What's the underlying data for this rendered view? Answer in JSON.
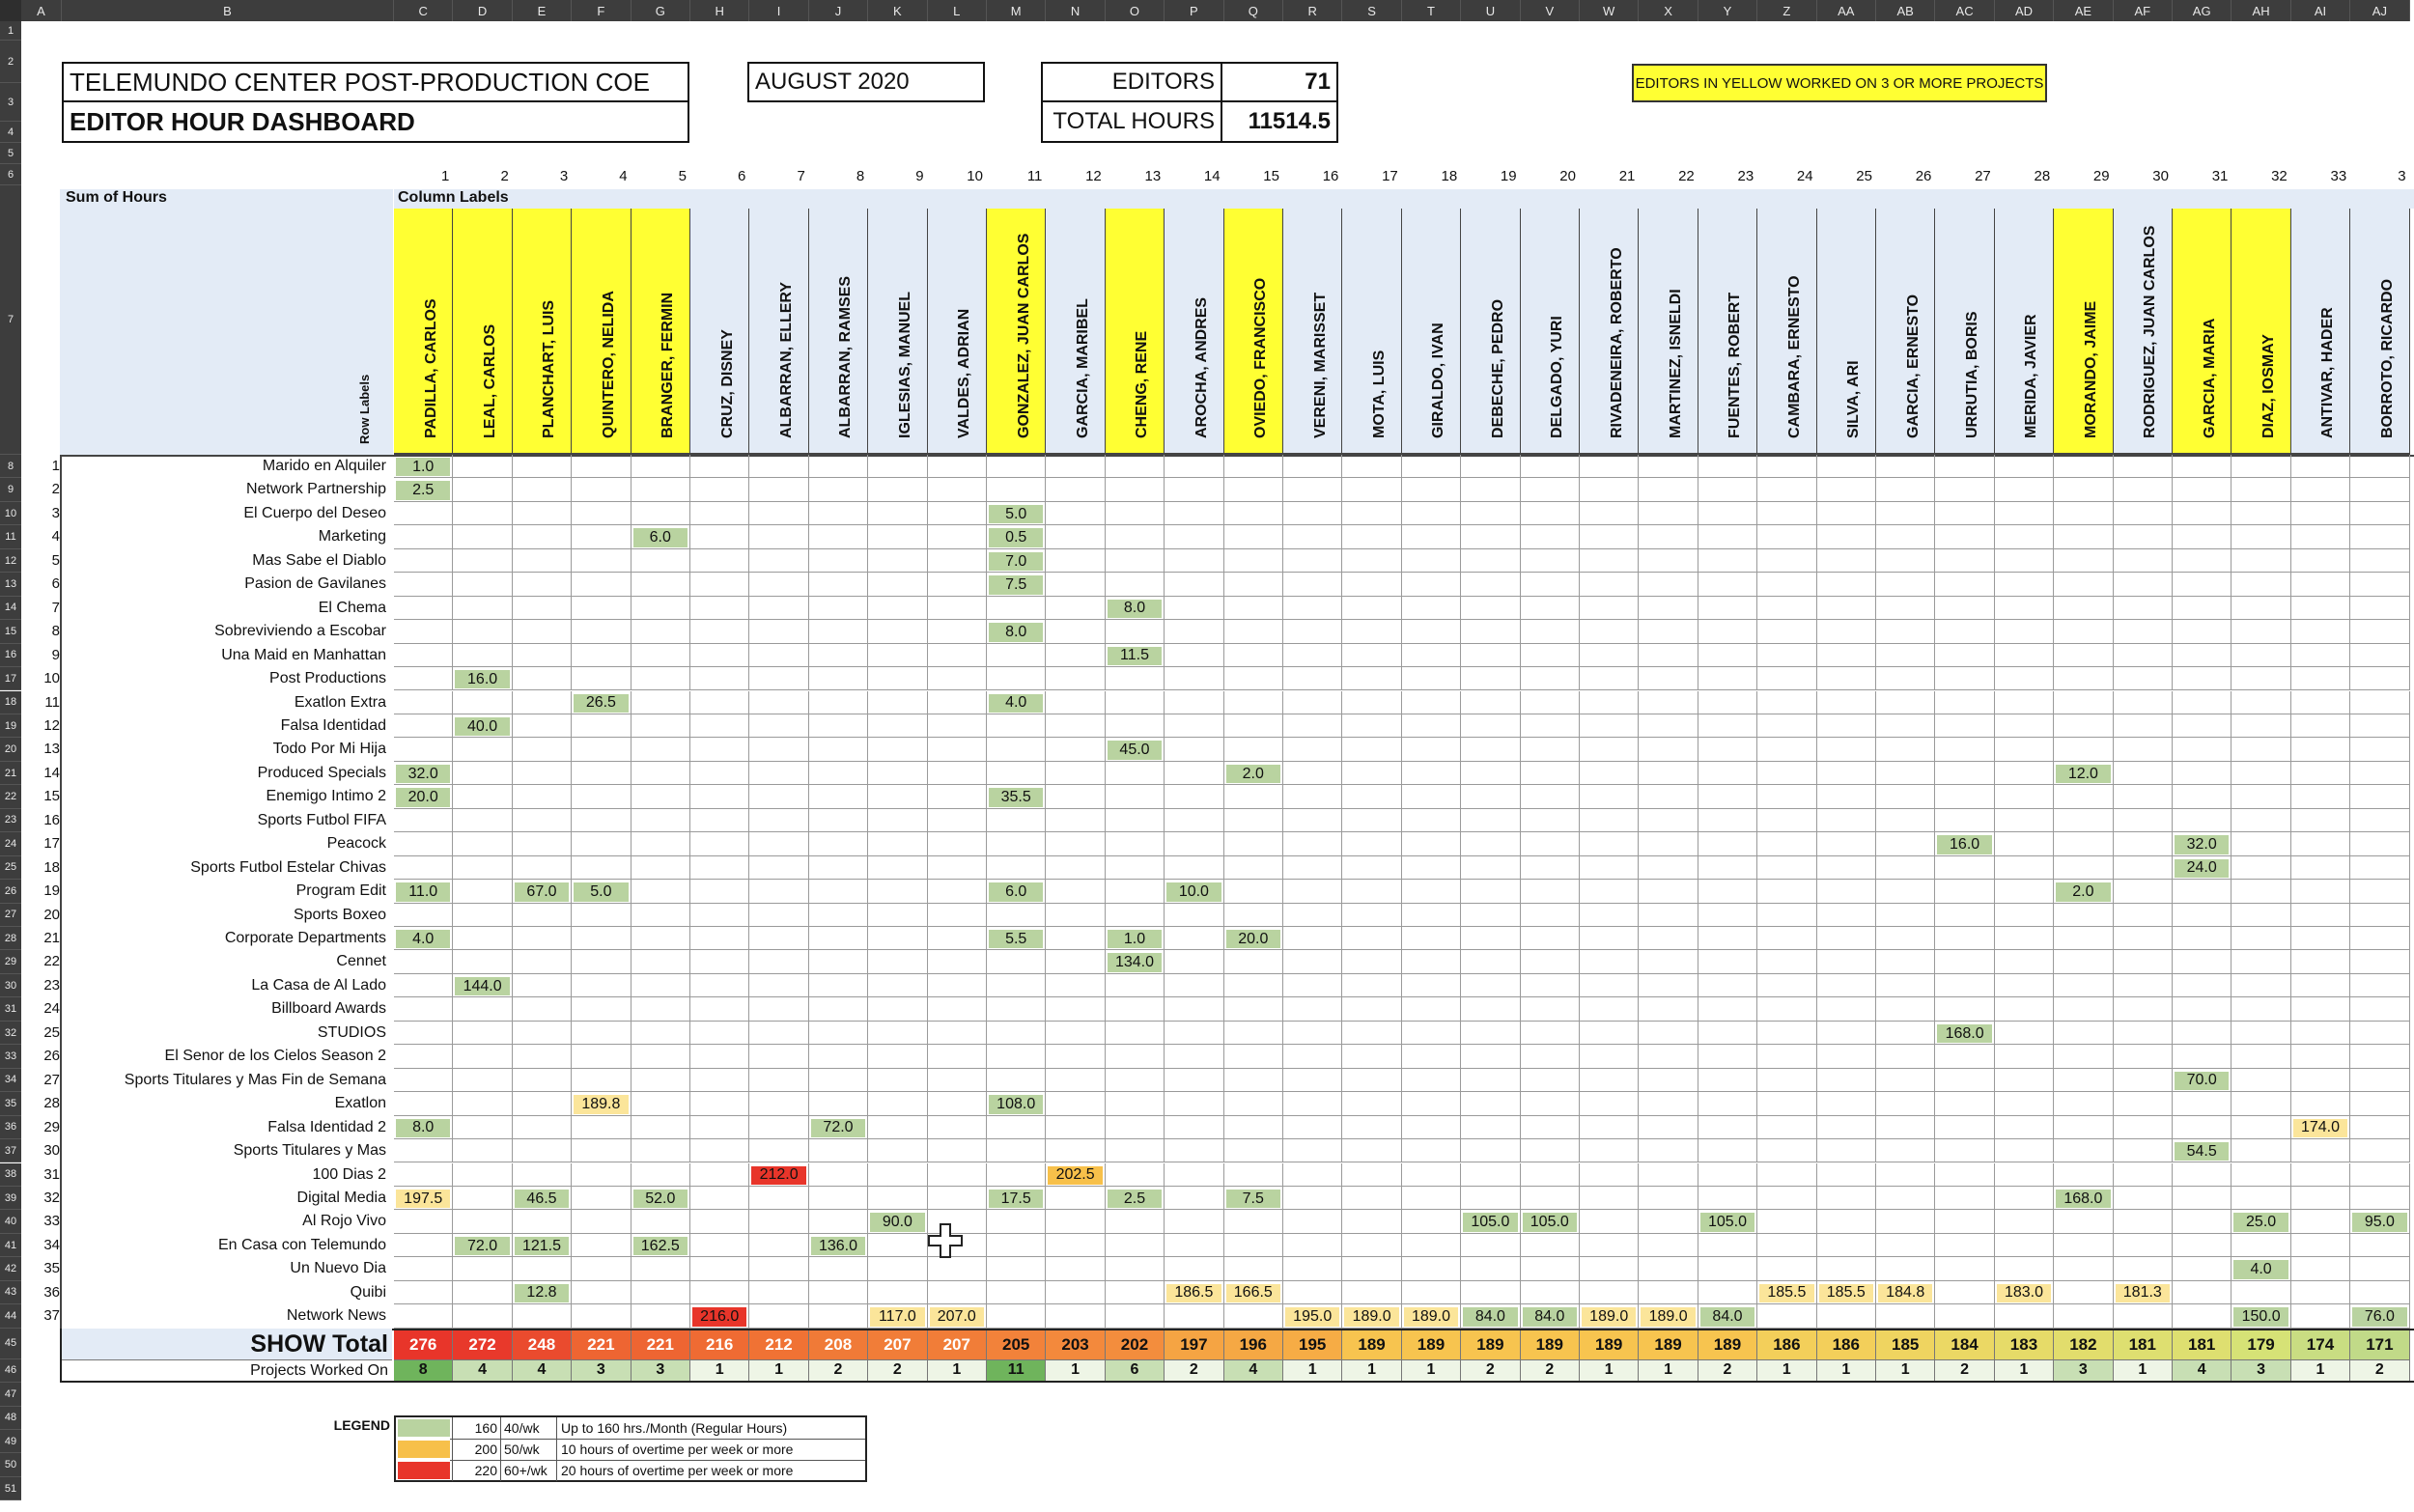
{
  "header": {
    "title1": "TELEMUNDO CENTER POST-PRODUCTION COE",
    "title2": "EDITOR HOUR DASHBOARD",
    "month": "AUGUST 2020",
    "editors_label": "EDITORS",
    "editors_value": "71",
    "total_label": "TOTAL HOURS",
    "total_value": "11514.5",
    "note": "EDITORS IN YELLOW WORKED ON 3 OR MORE PROJECTS"
  },
  "pivot": {
    "sum_label": "Sum of Hours",
    "col_labels": "Column Labels",
    "row_labels": "Row Labels",
    "show_total_label": "SHOW Total",
    "projects_label": "Projects Worked On"
  },
  "column_letters": [
    "A",
    "B",
    "C",
    "D",
    "E",
    "F",
    "G",
    "H",
    "I",
    "J",
    "K",
    "L",
    "M",
    "N",
    "O",
    "P",
    "Q",
    "R",
    "S",
    "T",
    "U",
    "V",
    "W",
    "X",
    "Y",
    "Z",
    "AA",
    "AB",
    "AC",
    "AD",
    "AE",
    "AF",
    "AG",
    "AH",
    "AI",
    "AJ"
  ],
  "editors": [
    {
      "name": "PADILLA, CARLOS",
      "yellow": true
    },
    {
      "name": "LEAL, CARLOS",
      "yellow": true
    },
    {
      "name": "PLANCHART, LUIS",
      "yellow": true
    },
    {
      "name": "QUINTERO, NELIDA",
      "yellow": true
    },
    {
      "name": "BRANGER, FERMIN",
      "yellow": true
    },
    {
      "name": "CRUZ, DISNEY",
      "yellow": false
    },
    {
      "name": "ALBARRAN, ELLERY",
      "yellow": false
    },
    {
      "name": "ALBARRAN, RAMSES",
      "yellow": false
    },
    {
      "name": "IGLESIAS, MANUEL",
      "yellow": false
    },
    {
      "name": "VALDES, ADRIAN",
      "yellow": false
    },
    {
      "name": "GONZALEZ, JUAN CARLOS",
      "yellow": true
    },
    {
      "name": "GARCIA, MARIBEL",
      "yellow": false
    },
    {
      "name": "CHENG, RENE",
      "yellow": true
    },
    {
      "name": "AROCHA, ANDRES",
      "yellow": false
    },
    {
      "name": "OVIEDO, FRANCISCO",
      "yellow": true
    },
    {
      "name": "VERENI, MARISSET",
      "yellow": false
    },
    {
      "name": "MOTA, LUIS",
      "yellow": false
    },
    {
      "name": "GIRALDO, IVAN",
      "yellow": false
    },
    {
      "name": "DEBECHE, PEDRO",
      "yellow": false
    },
    {
      "name": "DELGADO, YURI",
      "yellow": false
    },
    {
      "name": "RIVADENEIRA, ROBERTO",
      "yellow": false
    },
    {
      "name": "MARTINEZ, ISNELDI",
      "yellow": false
    },
    {
      "name": "FUENTES, ROBERT",
      "yellow": false
    },
    {
      "name": "CAMBARA, ERNESTO",
      "yellow": false
    },
    {
      "name": "SILVA, ARI",
      "yellow": false
    },
    {
      "name": "GARCIA, ERNESTO",
      "yellow": false
    },
    {
      "name": "URRUTIA, BORIS",
      "yellow": false
    },
    {
      "name": "MERIDA, JAVIER",
      "yellow": false
    },
    {
      "name": "MORANDO, JAIME",
      "yellow": true
    },
    {
      "name": "RODRIGUEZ, JUAN CARLOS",
      "yellow": false
    },
    {
      "name": "GARCIA, MARIA",
      "yellow": true
    },
    {
      "name": "DIAZ, IOSMAY",
      "yellow": true
    },
    {
      "name": "ANTIVAR, HADER",
      "yellow": false
    },
    {
      "name": "BORROTO, RICARDO",
      "yellow": false
    }
  ],
  "col_numbers": [
    "1",
    "2",
    "3",
    "4",
    "5",
    "6",
    "7",
    "8",
    "9",
    "10",
    "11",
    "12",
    "13",
    "14",
    "15",
    "16",
    "17",
    "18",
    "19",
    "20",
    "21",
    "22",
    "23",
    "24",
    "25",
    "26",
    "27",
    "28",
    "29",
    "30",
    "31",
    "32",
    "33",
    "3"
  ],
  "shows": [
    "Marido en Alquiler",
    "Network Partnership",
    "El Cuerpo del Deseo",
    "Marketing",
    "Mas Sabe el Diablo",
    "Pasion de Gavilanes",
    "El Chema",
    "Sobreviviendo a Escobar",
    "Una Maid en Manhattan",
    "Post Productions",
    "Exatlon Extra",
    "Falsa Identidad",
    "Todo Por Mi Hija",
    "Produced Specials",
    "Enemigo Intimo 2",
    "Sports Futbol FIFA",
    "Peacock",
    "Sports Futbol Estelar Chivas",
    "Program Edit",
    "Sports Boxeo",
    "Corporate Departments",
    "Cennet",
    "La Casa de Al Lado",
    "Billboard Awards",
    "STUDIOS",
    "El Senor de los Cielos Season 2",
    "Sports Titulares y Mas Fin de Semana",
    "Exatlon",
    "Falsa Identidad 2",
    "Sports Titulares y Mas",
    "100 Dias 2",
    "Digital Media",
    "Al Rojo Vivo",
    "En Casa con Telemundo",
    "Un Nuevo Dia",
    "Quibi",
    "Network News"
  ],
  "values": [
    {
      "r": 0,
      "c": 0,
      "v": "1.0",
      "t": "g"
    },
    {
      "r": 1,
      "c": 0,
      "v": "2.5",
      "t": "g"
    },
    {
      "r": 2,
      "c": 10,
      "v": "5.0",
      "t": "g"
    },
    {
      "r": 3,
      "c": 4,
      "v": "6.0",
      "t": "g"
    },
    {
      "r": 3,
      "c": 10,
      "v": "0.5",
      "t": "g"
    },
    {
      "r": 4,
      "c": 10,
      "v": "7.0",
      "t": "g"
    },
    {
      "r": 5,
      "c": 10,
      "v": "7.5",
      "t": "g"
    },
    {
      "r": 6,
      "c": 12,
      "v": "8.0",
      "t": "g"
    },
    {
      "r": 7,
      "c": 10,
      "v": "8.0",
      "t": "g"
    },
    {
      "r": 8,
      "c": 12,
      "v": "11.5",
      "t": "g"
    },
    {
      "r": 9,
      "c": 1,
      "v": "16.0",
      "t": "g"
    },
    {
      "r": 10,
      "c": 3,
      "v": "26.5",
      "t": "g"
    },
    {
      "r": 10,
      "c": 10,
      "v": "4.0",
      "t": "g"
    },
    {
      "r": 11,
      "c": 1,
      "v": "40.0",
      "t": "g"
    },
    {
      "r": 12,
      "c": 12,
      "v": "45.0",
      "t": "g"
    },
    {
      "r": 13,
      "c": 0,
      "v": "32.0",
      "t": "g"
    },
    {
      "r": 13,
      "c": 14,
      "v": "2.0",
      "t": "g"
    },
    {
      "r": 13,
      "c": 28,
      "v": "12.0",
      "t": "g"
    },
    {
      "r": 14,
      "c": 0,
      "v": "20.0",
      "t": "g"
    },
    {
      "r": 14,
      "c": 10,
      "v": "35.5",
      "t": "g"
    },
    {
      "r": 16,
      "c": 26,
      "v": "16.0",
      "t": "g"
    },
    {
      "r": 16,
      "c": 30,
      "v": "32.0",
      "t": "g"
    },
    {
      "r": 17,
      "c": 30,
      "v": "24.0",
      "t": "g"
    },
    {
      "r": 18,
      "c": 0,
      "v": "11.0",
      "t": "g"
    },
    {
      "r": 18,
      "c": 2,
      "v": "67.0",
      "t": "g"
    },
    {
      "r": 18,
      "c": 3,
      "v": "5.0",
      "t": "g"
    },
    {
      "r": 18,
      "c": 10,
      "v": "6.0",
      "t": "g"
    },
    {
      "r": 18,
      "c": 13,
      "v": "10.0",
      "t": "g"
    },
    {
      "r": 18,
      "c": 28,
      "v": "2.0",
      "t": "g"
    },
    {
      "r": 20,
      "c": 0,
      "v": "4.0",
      "t": "g"
    },
    {
      "r": 20,
      "c": 10,
      "v": "5.5",
      "t": "g"
    },
    {
      "r": 20,
      "c": 12,
      "v": "1.0",
      "t": "g"
    },
    {
      "r": 20,
      "c": 14,
      "v": "20.0",
      "t": "g"
    },
    {
      "r": 21,
      "c": 12,
      "v": "134.0",
      "t": "g"
    },
    {
      "r": 22,
      "c": 1,
      "v": "144.0",
      "t": "g"
    },
    {
      "r": 24,
      "c": 26,
      "v": "168.0",
      "t": "g"
    },
    {
      "r": 26,
      "c": 30,
      "v": "70.0",
      "t": "g"
    },
    {
      "r": 27,
      "c": 3,
      "v": "189.8",
      "t": "y"
    },
    {
      "r": 27,
      "c": 10,
      "v": "108.0",
      "t": "g"
    },
    {
      "r": 28,
      "c": 0,
      "v": "8.0",
      "t": "g"
    },
    {
      "r": 28,
      "c": 7,
      "v": "72.0",
      "t": "g"
    },
    {
      "r": 28,
      "c": 32,
      "v": "174.0",
      "t": "y"
    },
    {
      "r": 29,
      "c": 30,
      "v": "54.5",
      "t": "g"
    },
    {
      "r": 30,
      "c": 6,
      "v": "212.0",
      "t": "r"
    },
    {
      "r": 30,
      "c": 11,
      "v": "202.5",
      "t": "o"
    },
    {
      "r": 31,
      "c": 0,
      "v": "197.5",
      "t": "y"
    },
    {
      "r": 31,
      "c": 2,
      "v": "46.5",
      "t": "g"
    },
    {
      "r": 31,
      "c": 4,
      "v": "52.0",
      "t": "g"
    },
    {
      "r": 31,
      "c": 10,
      "v": "17.5",
      "t": "g"
    },
    {
      "r": 31,
      "c": 12,
      "v": "2.5",
      "t": "g"
    },
    {
      "r": 31,
      "c": 14,
      "v": "7.5",
      "t": "g"
    },
    {
      "r": 31,
      "c": 28,
      "v": "168.0",
      "t": "g"
    },
    {
      "r": 32,
      "c": 8,
      "v": "90.0",
      "t": "g"
    },
    {
      "r": 32,
      "c": 18,
      "v": "105.0",
      "t": "g"
    },
    {
      "r": 32,
      "c": 19,
      "v": "105.0",
      "t": "g"
    },
    {
      "r": 32,
      "c": 22,
      "v": "105.0",
      "t": "g"
    },
    {
      "r": 32,
      "c": 31,
      "v": "25.0",
      "t": "g"
    },
    {
      "r": 32,
      "c": 33,
      "v": "95.0",
      "t": "g"
    },
    {
      "r": 33,
      "c": 1,
      "v": "72.0",
      "t": "g"
    },
    {
      "r": 33,
      "c": 2,
      "v": "121.5",
      "t": "g"
    },
    {
      "r": 33,
      "c": 4,
      "v": "162.5",
      "t": "g"
    },
    {
      "r": 33,
      "c": 7,
      "v": "136.0",
      "t": "g"
    },
    {
      "r": 34,
      "c": 31,
      "v": "4.0",
      "t": "g"
    },
    {
      "r": 35,
      "c": 2,
      "v": "12.8",
      "t": "g"
    },
    {
      "r": 35,
      "c": 13,
      "v": "186.5",
      "t": "y"
    },
    {
      "r": 35,
      "c": 14,
      "v": "166.5",
      "t": "y"
    },
    {
      "r": 35,
      "c": 23,
      "v": "185.5",
      "t": "y"
    },
    {
      "r": 35,
      "c": 24,
      "v": "185.5",
      "t": "y"
    },
    {
      "r": 35,
      "c": 25,
      "v": "184.8",
      "t": "y"
    },
    {
      "r": 35,
      "c": 27,
      "v": "183.0",
      "t": "y"
    },
    {
      "r": 35,
      "c": 29,
      "v": "181.3",
      "t": "y"
    },
    {
      "r": 36,
      "c": 5,
      "v": "216.0",
      "t": "r"
    },
    {
      "r": 36,
      "c": 8,
      "v": "117.0",
      "t": "y"
    },
    {
      "r": 36,
      "c": 9,
      "v": "207.0",
      "t": "y"
    },
    {
      "r": 36,
      "c": 15,
      "v": "195.0",
      "t": "y"
    },
    {
      "r": 36,
      "c": 16,
      "v": "189.0",
      "t": "y"
    },
    {
      "r": 36,
      "c": 17,
      "v": "189.0",
      "t": "y"
    },
    {
      "r": 36,
      "c": 18,
      "v": "84.0",
      "t": "g"
    },
    {
      "r": 36,
      "c": 19,
      "v": "84.0",
      "t": "g"
    },
    {
      "r": 36,
      "c": 20,
      "v": "189.0",
      "t": "y"
    },
    {
      "r": 36,
      "c": 21,
      "v": "189.0",
      "t": "y"
    },
    {
      "r": 36,
      "c": 22,
      "v": "84.0",
      "t": "g"
    },
    {
      "r": 36,
      "c": 31,
      "v": "150.0",
      "t": "g"
    },
    {
      "r": 36,
      "c": 33,
      "v": "76.0",
      "t": "g"
    }
  ],
  "totals": [
    {
      "v": "276",
      "bg": "#e8352a"
    },
    {
      "v": "272",
      "bg": "#e8392b"
    },
    {
      "v": "248",
      "bg": "#ea4b2e"
    },
    {
      "v": "221",
      "bg": "#ee6532"
    },
    {
      "v": "221",
      "bg": "#ee6532"
    },
    {
      "v": "216",
      "bg": "#ef6b33"
    },
    {
      "v": "212",
      "bg": "#f07234"
    },
    {
      "v": "208",
      "bg": "#f07a37"
    },
    {
      "v": "207",
      "bg": "#f17d38"
    },
    {
      "v": "207",
      "bg": "#f17d38"
    },
    {
      "v": "205",
      "bg": "#f2823a"
    },
    {
      "v": "203",
      "bg": "#f3893c"
    },
    {
      "v": "202",
      "bg": "#f38d3d"
    },
    {
      "v": "197",
      "bg": "#f5a443"
    },
    {
      "v": "196",
      "bg": "#f5a844"
    },
    {
      "v": "195",
      "bg": "#f6ac45"
    },
    {
      "v": "189",
      "bg": "#f7c44f"
    },
    {
      "v": "189",
      "bg": "#f7c44f"
    },
    {
      "v": "189",
      "bg": "#f7c44f"
    },
    {
      "v": "189",
      "bg": "#f7c44f"
    },
    {
      "v": "189",
      "bg": "#f7c44f"
    },
    {
      "v": "189",
      "bg": "#f7c44f"
    },
    {
      "v": "189",
      "bg": "#f7c44f"
    },
    {
      "v": "186",
      "bg": "#f3cf5a"
    },
    {
      "v": "186",
      "bg": "#f3cf5a"
    },
    {
      "v": "185",
      "bg": "#efd460"
    },
    {
      "v": "184",
      "bg": "#ebd864"
    },
    {
      "v": "183",
      "bg": "#e6db68"
    },
    {
      "v": "182",
      "bg": "#e2dd6c"
    },
    {
      "v": "181",
      "bg": "#dedf70"
    },
    {
      "v": "181",
      "bg": "#dedf70"
    },
    {
      "v": "179",
      "bg": "#d6e276"
    },
    {
      "v": "174",
      "bg": "#c9dd82"
    },
    {
      "v": "171",
      "bg": "#c1da88"
    }
  ],
  "projects": [
    "8",
    "4",
    "4",
    "3",
    "3",
    "1",
    "1",
    "2",
    "2",
    "1",
    "11",
    "1",
    "6",
    "2",
    "4",
    "1",
    "1",
    "1",
    "2",
    "2",
    "1",
    "1",
    "2",
    "1",
    "1",
    "1",
    "2",
    "1",
    "3",
    "1",
    "4",
    "3",
    "1",
    "2"
  ],
  "legend": {
    "title": "LEGEND",
    "rows": [
      {
        "color": "#b9d3a0",
        "hours": "160",
        "rate": "40/wk",
        "desc": "Up to 160 hrs./Month (Regular Hours)"
      },
      {
        "color": "#f7c04a",
        "hours": "200",
        "rate": "50/wk",
        "desc": "10 hours of overtime per week or more"
      },
      {
        "color": "#e8352a",
        "hours": "220",
        "rate": "60+/wk",
        "desc": "20 hours of overtime per week or more"
      }
    ]
  },
  "colors": {
    "green": "#b9d3a0",
    "yellowcell": "#fbe59a",
    "orangecell": "#f7c04a",
    "red": "#e8352a",
    "editor_yellow": "#ffff33",
    "editor_blue": "#e3ebf6",
    "header_dark": "#3d3d3d"
  }
}
